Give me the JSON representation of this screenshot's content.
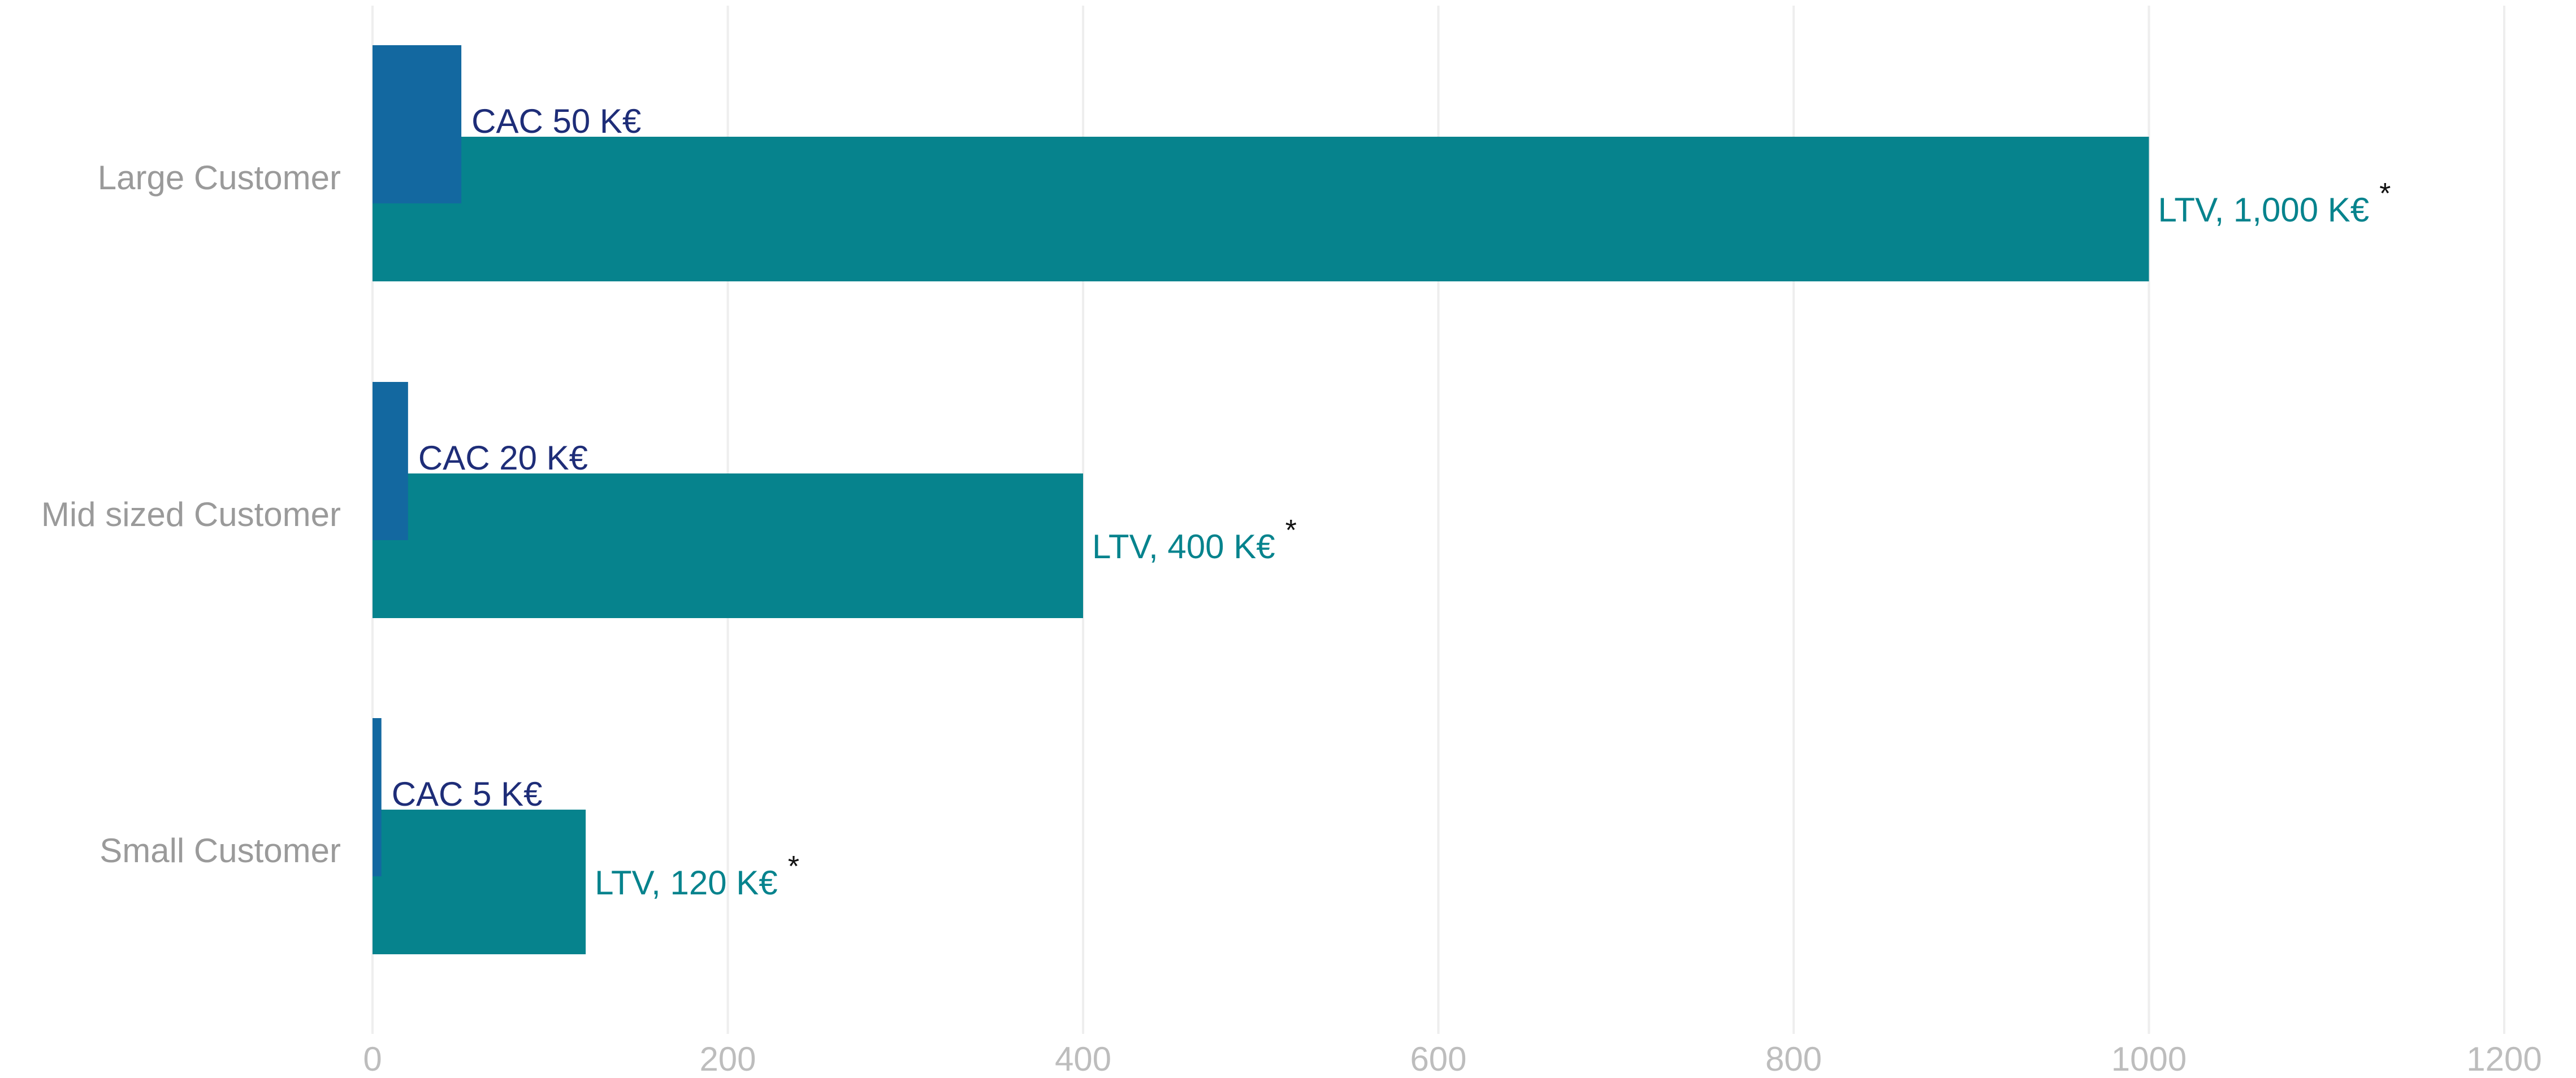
{
  "colors": {
    "cac": "#1368a0",
    "ltv": "#06838d",
    "ltv_text": "#06838d",
    "cac_text": "#1e2d78"
  },
  "chart_data": {
    "type": "bar",
    "orientation": "horizontal",
    "categories": [
      "Large Customer",
      "Mid sized Customer",
      "Small Customer"
    ],
    "series": [
      {
        "values": [
          50,
          20,
          5
        ],
        "labels": [
          "CAC 50 K€",
          "CAC 20 K€",
          "CAC 5 K€"
        ]
      },
      {
        "values": [
          1000,
          400,
          120
        ],
        "labels": [
          "LTV, 1,000 K€",
          "LTV, 400 K€",
          "LTV, 120 K€"
        ]
      }
    ],
    "annotation_marker": "*",
    "xlim": [
      0,
      1200
    ],
    "xticks": [
      0,
      200,
      400,
      600,
      800,
      1000,
      1200
    ],
    "xtick_labels": [
      "0",
      "200",
      "400",
      "600",
      "800",
      "1000",
      "1200"
    ],
    "grid": "vertical",
    "legend": "none"
  }
}
